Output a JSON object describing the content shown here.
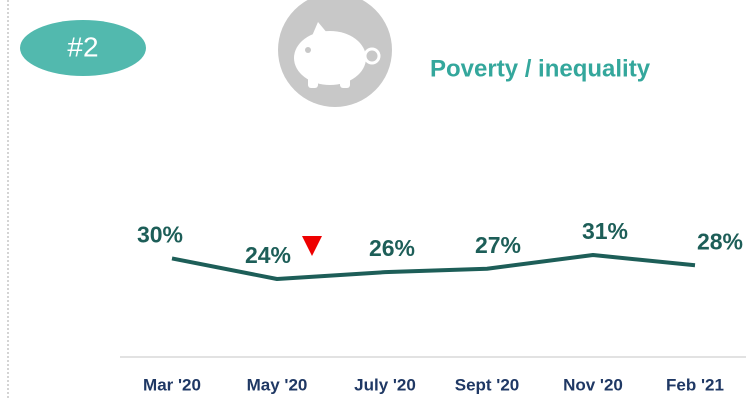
{
  "badge": "#2",
  "chart_data": {
    "type": "line",
    "title": "Poverty / inequality",
    "categories": [
      "Mar '20",
      "May '20",
      "July '20",
      "Sept '20",
      "Nov '20",
      "Feb '21"
    ],
    "values": [
      30,
      24,
      26,
      27,
      31,
      28
    ],
    "value_labels": [
      "30%",
      "24%",
      "26%",
      "27%",
      "31%",
      "28%"
    ],
    "color": "#1d5e58"
  }
}
